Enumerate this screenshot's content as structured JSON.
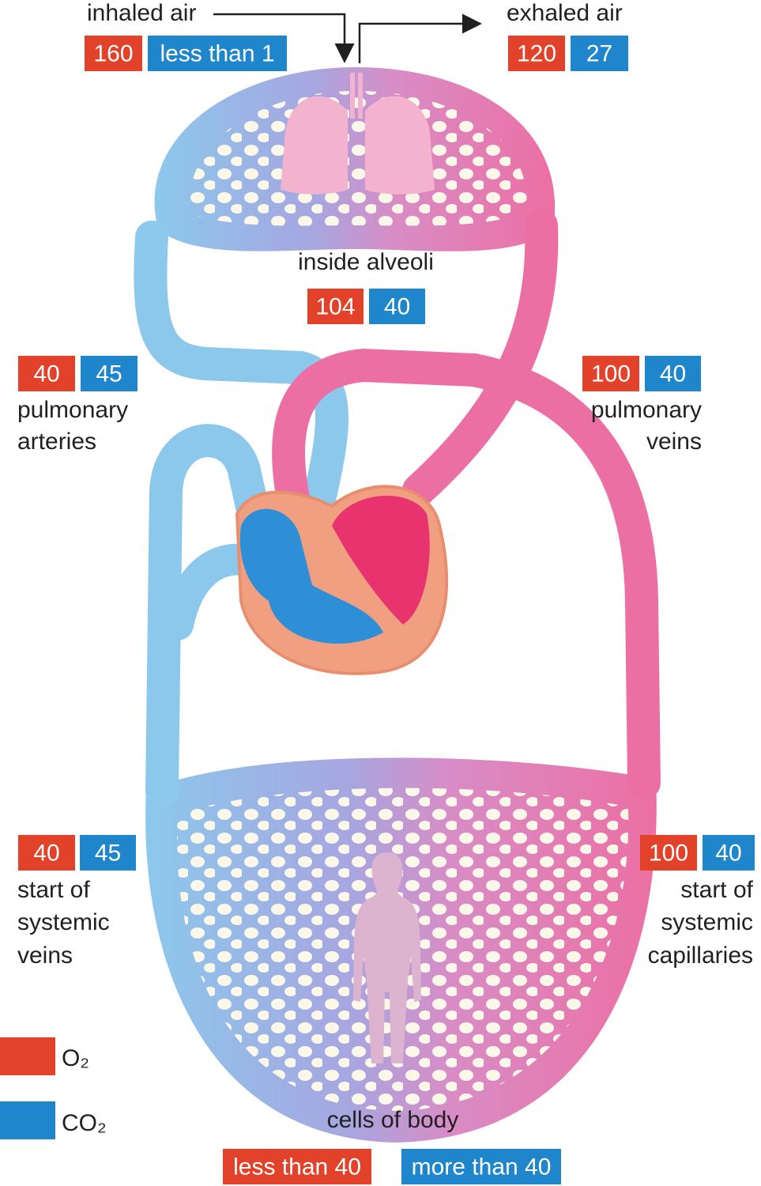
{
  "inhaled_air": {
    "label": "inhaled air",
    "o2": "160",
    "co2": "less than 1"
  },
  "exhaled_air": {
    "label": "exhaled air",
    "o2": "120",
    "co2": "27"
  },
  "alveoli": {
    "label": "inside alveoli",
    "o2": "104",
    "co2": "40"
  },
  "pulmonary_arteries": {
    "label": [
      "pulmonary",
      "arteries"
    ],
    "o2": "40",
    "co2": "45"
  },
  "pulmonary_veins": {
    "label": [
      "pulmonary",
      "veins"
    ],
    "o2": "100",
    "co2": "40"
  },
  "systemic_veins": {
    "label": [
      "start of",
      "systemic",
      "veins"
    ],
    "o2": "40",
    "co2": "45"
  },
  "systemic_capillaries": {
    "label": [
      "start of",
      "systemic",
      "capillaries"
    ],
    "o2": "100",
    "co2": "40"
  },
  "cells_of_body": {
    "label": "cells of body",
    "o2": "less than 40",
    "co2": "more than 40"
  },
  "legend": [
    {
      "label": "O₂"
    },
    {
      "label": "CO₂"
    }
  ]
}
